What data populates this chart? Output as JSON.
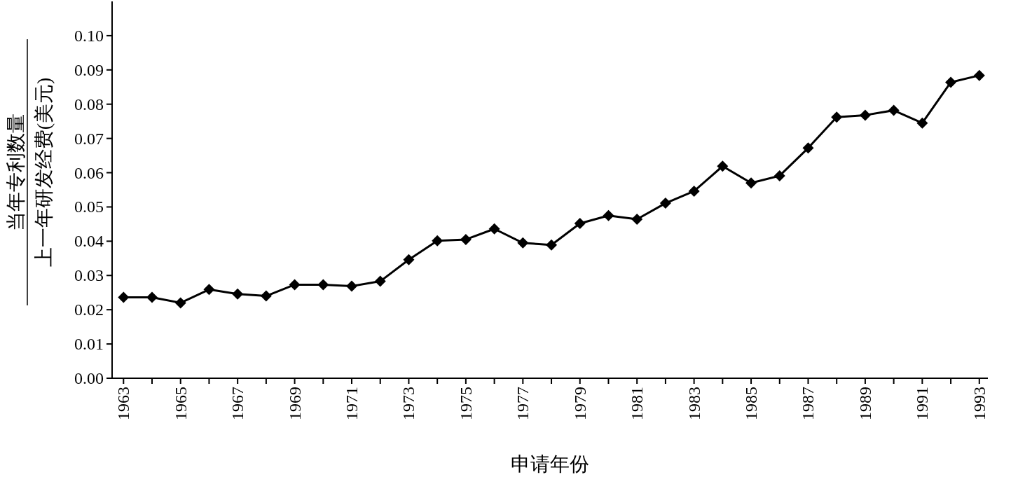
{
  "chart_data": {
    "type": "line",
    "xlabel": "申请年份",
    "ylabel": [
      "当年专利数量",
      "上一年研发经费(美元)"
    ],
    "x": [
      1963,
      1964,
      1965,
      1966,
      1967,
      1968,
      1969,
      1970,
      1971,
      1972,
      1973,
      1974,
      1975,
      1976,
      1977,
      1978,
      1979,
      1980,
      1981,
      1982,
      1983,
      1984,
      1985,
      1986,
      1987,
      1988,
      1989,
      1990,
      1991,
      1992,
      1993
    ],
    "series": [
      {
        "color": "#000000",
        "values": [
          0.0236,
          0.0236,
          0.022,
          0.0259,
          0.0246,
          0.024,
          0.0273,
          0.0273,
          0.0269,
          0.0283,
          0.0346,
          0.0401,
          0.0405,
          0.0436,
          0.0395,
          0.0389,
          0.0452,
          0.0475,
          0.0464,
          0.0511,
          0.0546,
          0.0619,
          0.057,
          0.0591,
          0.0672,
          0.0762,
          0.0768,
          0.0782,
          0.0745,
          0.0864,
          0.0884
        ]
      }
    ],
    "xlim": [
      1962.6,
      1993.3
    ],
    "ylim": [
      0,
      0.11
    ],
    "xticks": [
      1963,
      {
        "value": 1964,
        "label": null
      },
      1965,
      {
        "value": 1966,
        "label": null
      },
      1967,
      {
        "value": 1968,
        "label": null
      },
      1969,
      {
        "value": 1970,
        "label": null
      },
      1971,
      {
        "value": 1972,
        "label": null
      },
      1973,
      {
        "value": 1974,
        "label": null
      },
      1975,
      {
        "value": 1976,
        "label": null
      },
      1977,
      {
        "value": 1978,
        "label": null
      },
      1979,
      {
        "value": 1980,
        "label": null
      },
      1981,
      {
        "value": 1982,
        "label": null
      },
      1983,
      {
        "value": 1984,
        "label": null
      },
      1985,
      {
        "value": 1986,
        "label": null
      },
      1987,
      {
        "value": 1988,
        "label": null
      },
      1989,
      {
        "value": 1990,
        "label": null
      },
      1991,
      {
        "value": 1992,
        "label": null
      },
      1993
    ],
    "yticks": [
      {
        "value": 0,
        "label": "0.00"
      },
      {
        "value": 0.01,
        "label": "0.01"
      },
      {
        "value": 0.02,
        "label": "0.02"
      },
      {
        "value": 0.03,
        "label": "0.03"
      },
      {
        "value": 0.04,
        "label": "0.04"
      },
      {
        "value": 0.05,
        "label": "0.05"
      },
      {
        "value": 0.06,
        "label": "0.06"
      },
      {
        "value": 0.07,
        "label": "0.07"
      },
      {
        "value": 0.08,
        "label": "0.08"
      },
      {
        "value": 0.09,
        "label": "0.09"
      },
      {
        "value": 0.1,
        "label": "0.10"
      }
    ],
    "marker": "diamond",
    "line_style": "solid",
    "grid": false
  }
}
